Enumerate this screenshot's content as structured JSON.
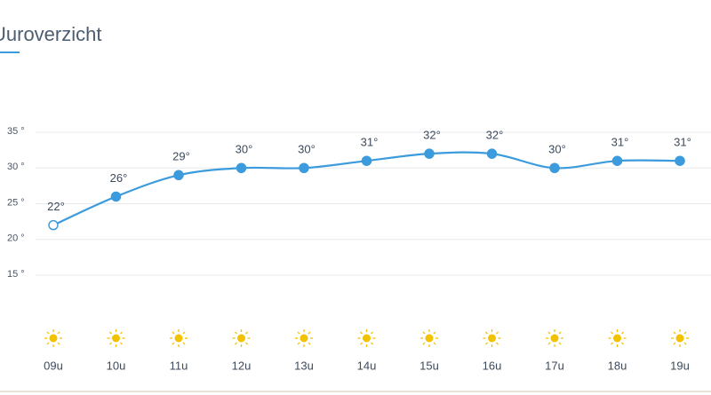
{
  "chart_data": {
    "type": "line",
    "title": "Uuroverzicht",
    "categories": [
      "09u",
      "10u",
      "11u",
      "12u",
      "13u",
      "14u",
      "15u",
      "16u",
      "17u",
      "18u",
      "19u"
    ],
    "values": [
      22,
      26,
      29,
      30,
      30,
      31,
      32,
      32,
      30,
      31,
      31
    ],
    "value_labels": [
      "22°",
      "26°",
      "29°",
      "30°",
      "30°",
      "31°",
      "32°",
      "32°",
      "30°",
      "31°",
      "31°"
    ],
    "color": "#3b9bdc",
    "ylim": [
      15,
      35
    ],
    "yticks": [
      {
        "value": 15,
        "label": "15 °"
      },
      {
        "value": 20,
        "label": "20 °"
      },
      {
        "value": 25,
        "label": "25 °"
      },
      {
        "value": 30,
        "label": "30 °"
      },
      {
        "value": 35,
        "label": "35 °"
      }
    ],
    "grid": true
  }
}
